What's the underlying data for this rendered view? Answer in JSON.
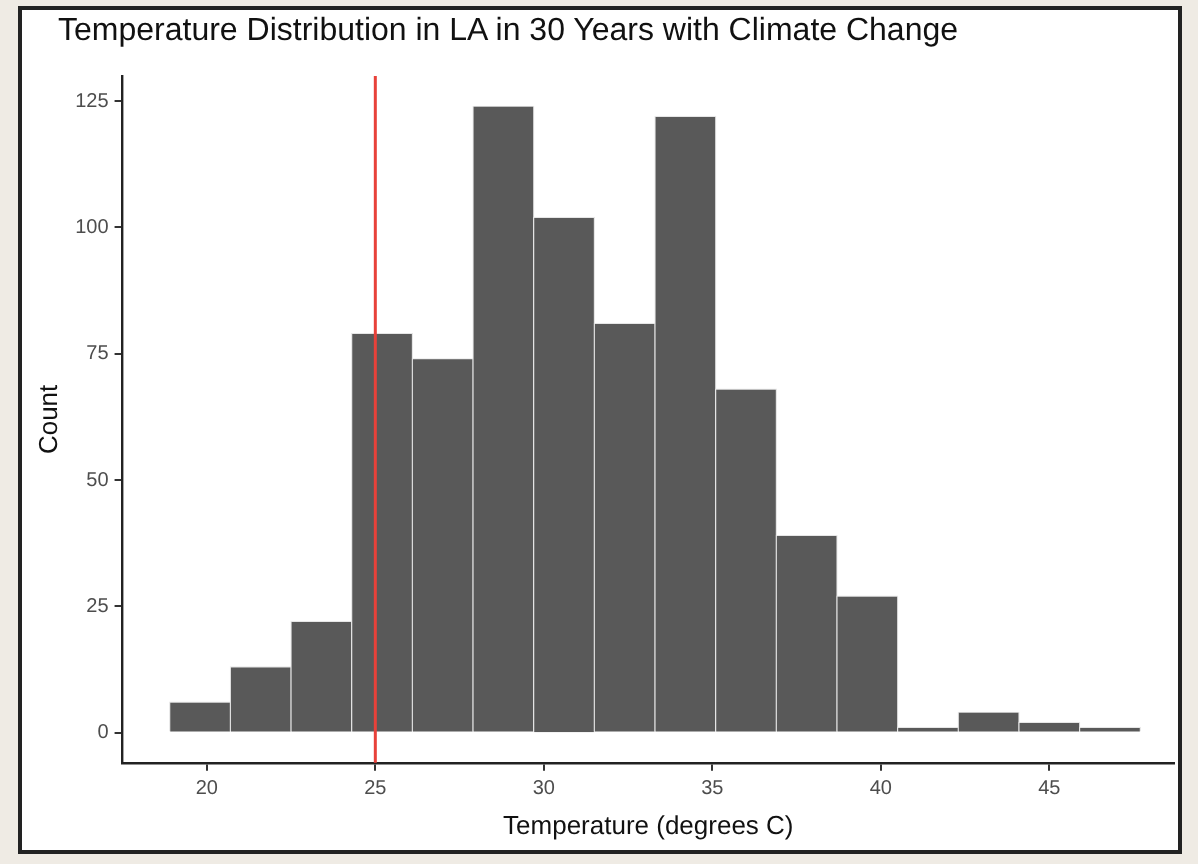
{
  "chart_data": {
    "type": "histogram",
    "title": "Temperature Distribution in LA in 30 Years with Climate Change",
    "xlabel": "Temperature (degrees C)",
    "ylabel": "Count",
    "bins": [
      18.9,
      20.7,
      22.5,
      24.3,
      26.1,
      27.9,
      29.7,
      31.5,
      33.3,
      35.1,
      36.9,
      38.7,
      40.5,
      42.3,
      44.1,
      45.9,
      47.7
    ],
    "values": [
      6,
      13,
      22,
      79,
      74,
      124,
      102,
      81,
      122,
      68,
      39,
      27,
      1,
      4,
      2,
      1
    ],
    "color": "#595959",
    "xlim": [
      17.5,
      48.7
    ],
    "xticks": [
      20,
      25,
      30,
      35,
      40,
      45
    ],
    "ylim": [
      -6,
      130
    ],
    "yticks": [
      0,
      25,
      50,
      75,
      100,
      125
    ],
    "grid": false,
    "legend": false,
    "ref_lines": [
      {
        "axis": "x",
        "value": 25,
        "color": "#e8413a"
      }
    ]
  }
}
